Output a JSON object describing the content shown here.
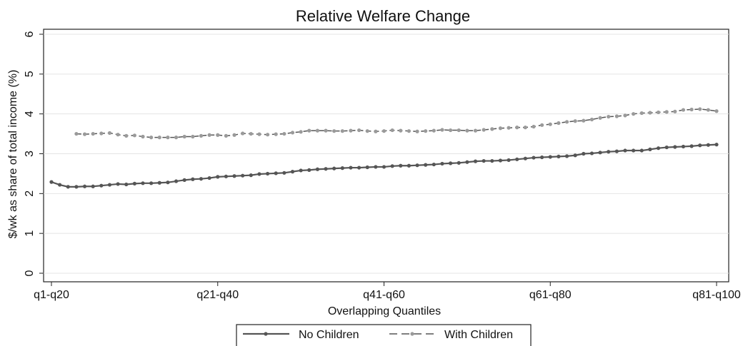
{
  "chart_data": {
    "type": "line",
    "title": "Relative Welfare Change",
    "xlabel": "Overlapping Quantiles",
    "ylabel": "$/wk as share of total income (%)",
    "ylim": [
      0,
      6
    ],
    "yticks": [
      "0",
      "1",
      "2",
      "3",
      "4",
      "5",
      "6"
    ],
    "x_tick_labels": [
      "q1-q20",
      "q21-q40",
      "q41-q60",
      "q61-q80",
      "q81-q100"
    ],
    "x_tick_positions": [
      1,
      21,
      41,
      61,
      81
    ],
    "xlim": [
      1,
      81
    ],
    "grid": "horizontal",
    "legend_position": "bottom",
    "series": [
      {
        "name": "No Children",
        "style": "solid",
        "color": "#555555",
        "x": [
          1,
          2,
          3,
          4,
          5,
          6,
          7,
          8,
          9,
          10,
          11,
          12,
          13,
          14,
          15,
          16,
          17,
          18,
          19,
          20,
          21,
          22,
          23,
          24,
          25,
          26,
          27,
          28,
          29,
          30,
          31,
          32,
          33,
          34,
          35,
          36,
          37,
          38,
          39,
          40,
          41,
          42,
          43,
          44,
          45,
          46,
          47,
          48,
          49,
          50,
          51,
          52,
          53,
          54,
          55,
          56,
          57,
          58,
          59,
          60,
          61,
          62,
          63,
          64,
          65,
          66,
          67,
          68,
          69,
          70,
          71,
          72,
          73,
          74,
          75,
          76,
          77,
          78,
          79,
          80,
          81
        ],
        "values": [
          2.29,
          2.22,
          2.17,
          2.17,
          2.18,
          2.18,
          2.2,
          2.22,
          2.24,
          2.23,
          2.25,
          2.26,
          2.26,
          2.27,
          2.28,
          2.31,
          2.34,
          2.36,
          2.37,
          2.39,
          2.42,
          2.43,
          2.44,
          2.45,
          2.46,
          2.49,
          2.5,
          2.51,
          2.52,
          2.55,
          2.58,
          2.59,
          2.61,
          2.62,
          2.63,
          2.64,
          2.65,
          2.65,
          2.66,
          2.67,
          2.67,
          2.69,
          2.7,
          2.7,
          2.71,
          2.72,
          2.73,
          2.75,
          2.76,
          2.77,
          2.79,
          2.81,
          2.82,
          2.82,
          2.83,
          2.84,
          2.86,
          2.88,
          2.9,
          2.91,
          2.92,
          2.93,
          2.94,
          2.96,
          3.0,
          3.01,
          3.03,
          3.05,
          3.06,
          3.08,
          3.08,
          3.08,
          3.11,
          3.14,
          3.16,
          3.17,
          3.18,
          3.19,
          3.21,
          3.22,
          3.23
        ]
      },
      {
        "name": "With Children",
        "style": "dashed",
        "color": "#9a9a9a",
        "x": [
          4,
          5,
          6,
          7,
          8,
          9,
          10,
          11,
          12,
          13,
          14,
          15,
          16,
          17,
          18,
          19,
          20,
          21,
          22,
          23,
          24,
          25,
          26,
          27,
          28,
          29,
          30,
          31,
          32,
          33,
          34,
          35,
          36,
          37,
          38,
          39,
          40,
          41,
          42,
          43,
          44,
          45,
          46,
          47,
          48,
          49,
          50,
          51,
          52,
          53,
          54,
          55,
          56,
          57,
          58,
          59,
          60,
          61,
          62,
          63,
          64,
          65,
          66,
          67,
          68,
          69,
          70,
          71,
          72,
          73,
          74,
          75,
          76,
          77,
          78,
          79,
          80,
          81
        ],
        "values": [
          3.5,
          3.49,
          3.5,
          3.51,
          3.52,
          3.48,
          3.45,
          3.46,
          3.43,
          3.41,
          3.41,
          3.41,
          3.41,
          3.43,
          3.43,
          3.45,
          3.47,
          3.47,
          3.45,
          3.47,
          3.51,
          3.5,
          3.49,
          3.48,
          3.49,
          3.5,
          3.53,
          3.55,
          3.58,
          3.58,
          3.58,
          3.57,
          3.57,
          3.58,
          3.59,
          3.57,
          3.56,
          3.57,
          3.59,
          3.58,
          3.57,
          3.56,
          3.57,
          3.58,
          3.6,
          3.59,
          3.59,
          3.58,
          3.58,
          3.6,
          3.62,
          3.64,
          3.65,
          3.66,
          3.66,
          3.68,
          3.72,
          3.74,
          3.77,
          3.8,
          3.82,
          3.83,
          3.86,
          3.9,
          3.93,
          3.94,
          3.96,
          4.0,
          4.02,
          4.03,
          4.04,
          4.05,
          4.06,
          4.1,
          4.11,
          4.12,
          4.1,
          4.07
        ]
      }
    ]
  }
}
